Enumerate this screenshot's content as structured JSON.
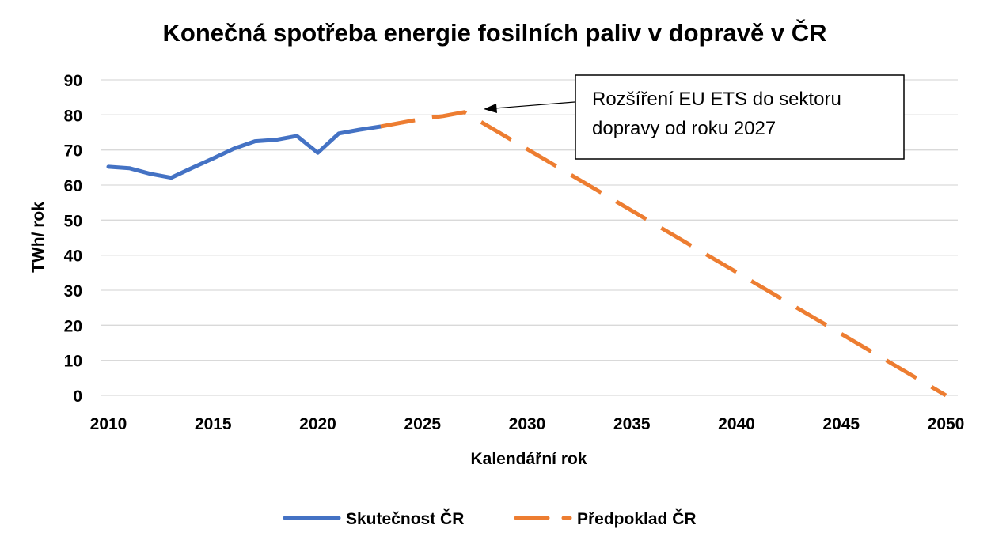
{
  "chart_data": {
    "type": "line",
    "title": "Konečná spotřeba energie fosilních paliv v dopravě v ČR",
    "xlabel": "Kalendářní rok",
    "ylabel": "TWh/ rok",
    "xlim": [
      2010,
      2050
    ],
    "ylim": [
      0,
      90
    ],
    "xticks": [
      2010,
      2015,
      2020,
      2025,
      2030,
      2035,
      2040,
      2045,
      2050
    ],
    "yticks": [
      0,
      10,
      20,
      30,
      40,
      50,
      60,
      70,
      80,
      90
    ],
    "grid": "horizontal",
    "legend_position": "bottom",
    "series": [
      {
        "name": "Skutečnost ČR",
        "color": "#4472C4",
        "style": "solid",
        "x": [
          2010,
          2011,
          2012,
          2013,
          2014,
          2015,
          2016,
          2017,
          2018,
          2019,
          2020,
          2021,
          2022,
          2023
        ],
        "y": [
          65.2,
          64.8,
          63.2,
          62.1,
          64.9,
          67.6,
          70.4,
          72.5,
          72.9,
          74.0,
          69.2,
          74.7,
          75.8,
          76.7
        ]
      },
      {
        "name": "Předpoklad ČR",
        "color": "#ED7D31",
        "style": "dashed",
        "x": [
          2023,
          2024,
          2025,
          2026,
          2027,
          2050
        ],
        "y": [
          76.7,
          77.8,
          78.9,
          79.7,
          80.8,
          0
        ]
      }
    ],
    "annotation": {
      "text_lines": [
        "Rozšíření EU ETS do sektoru",
        "dopravy od roku 2027"
      ],
      "points_to": {
        "x": 2027,
        "y": 80.8
      }
    }
  }
}
